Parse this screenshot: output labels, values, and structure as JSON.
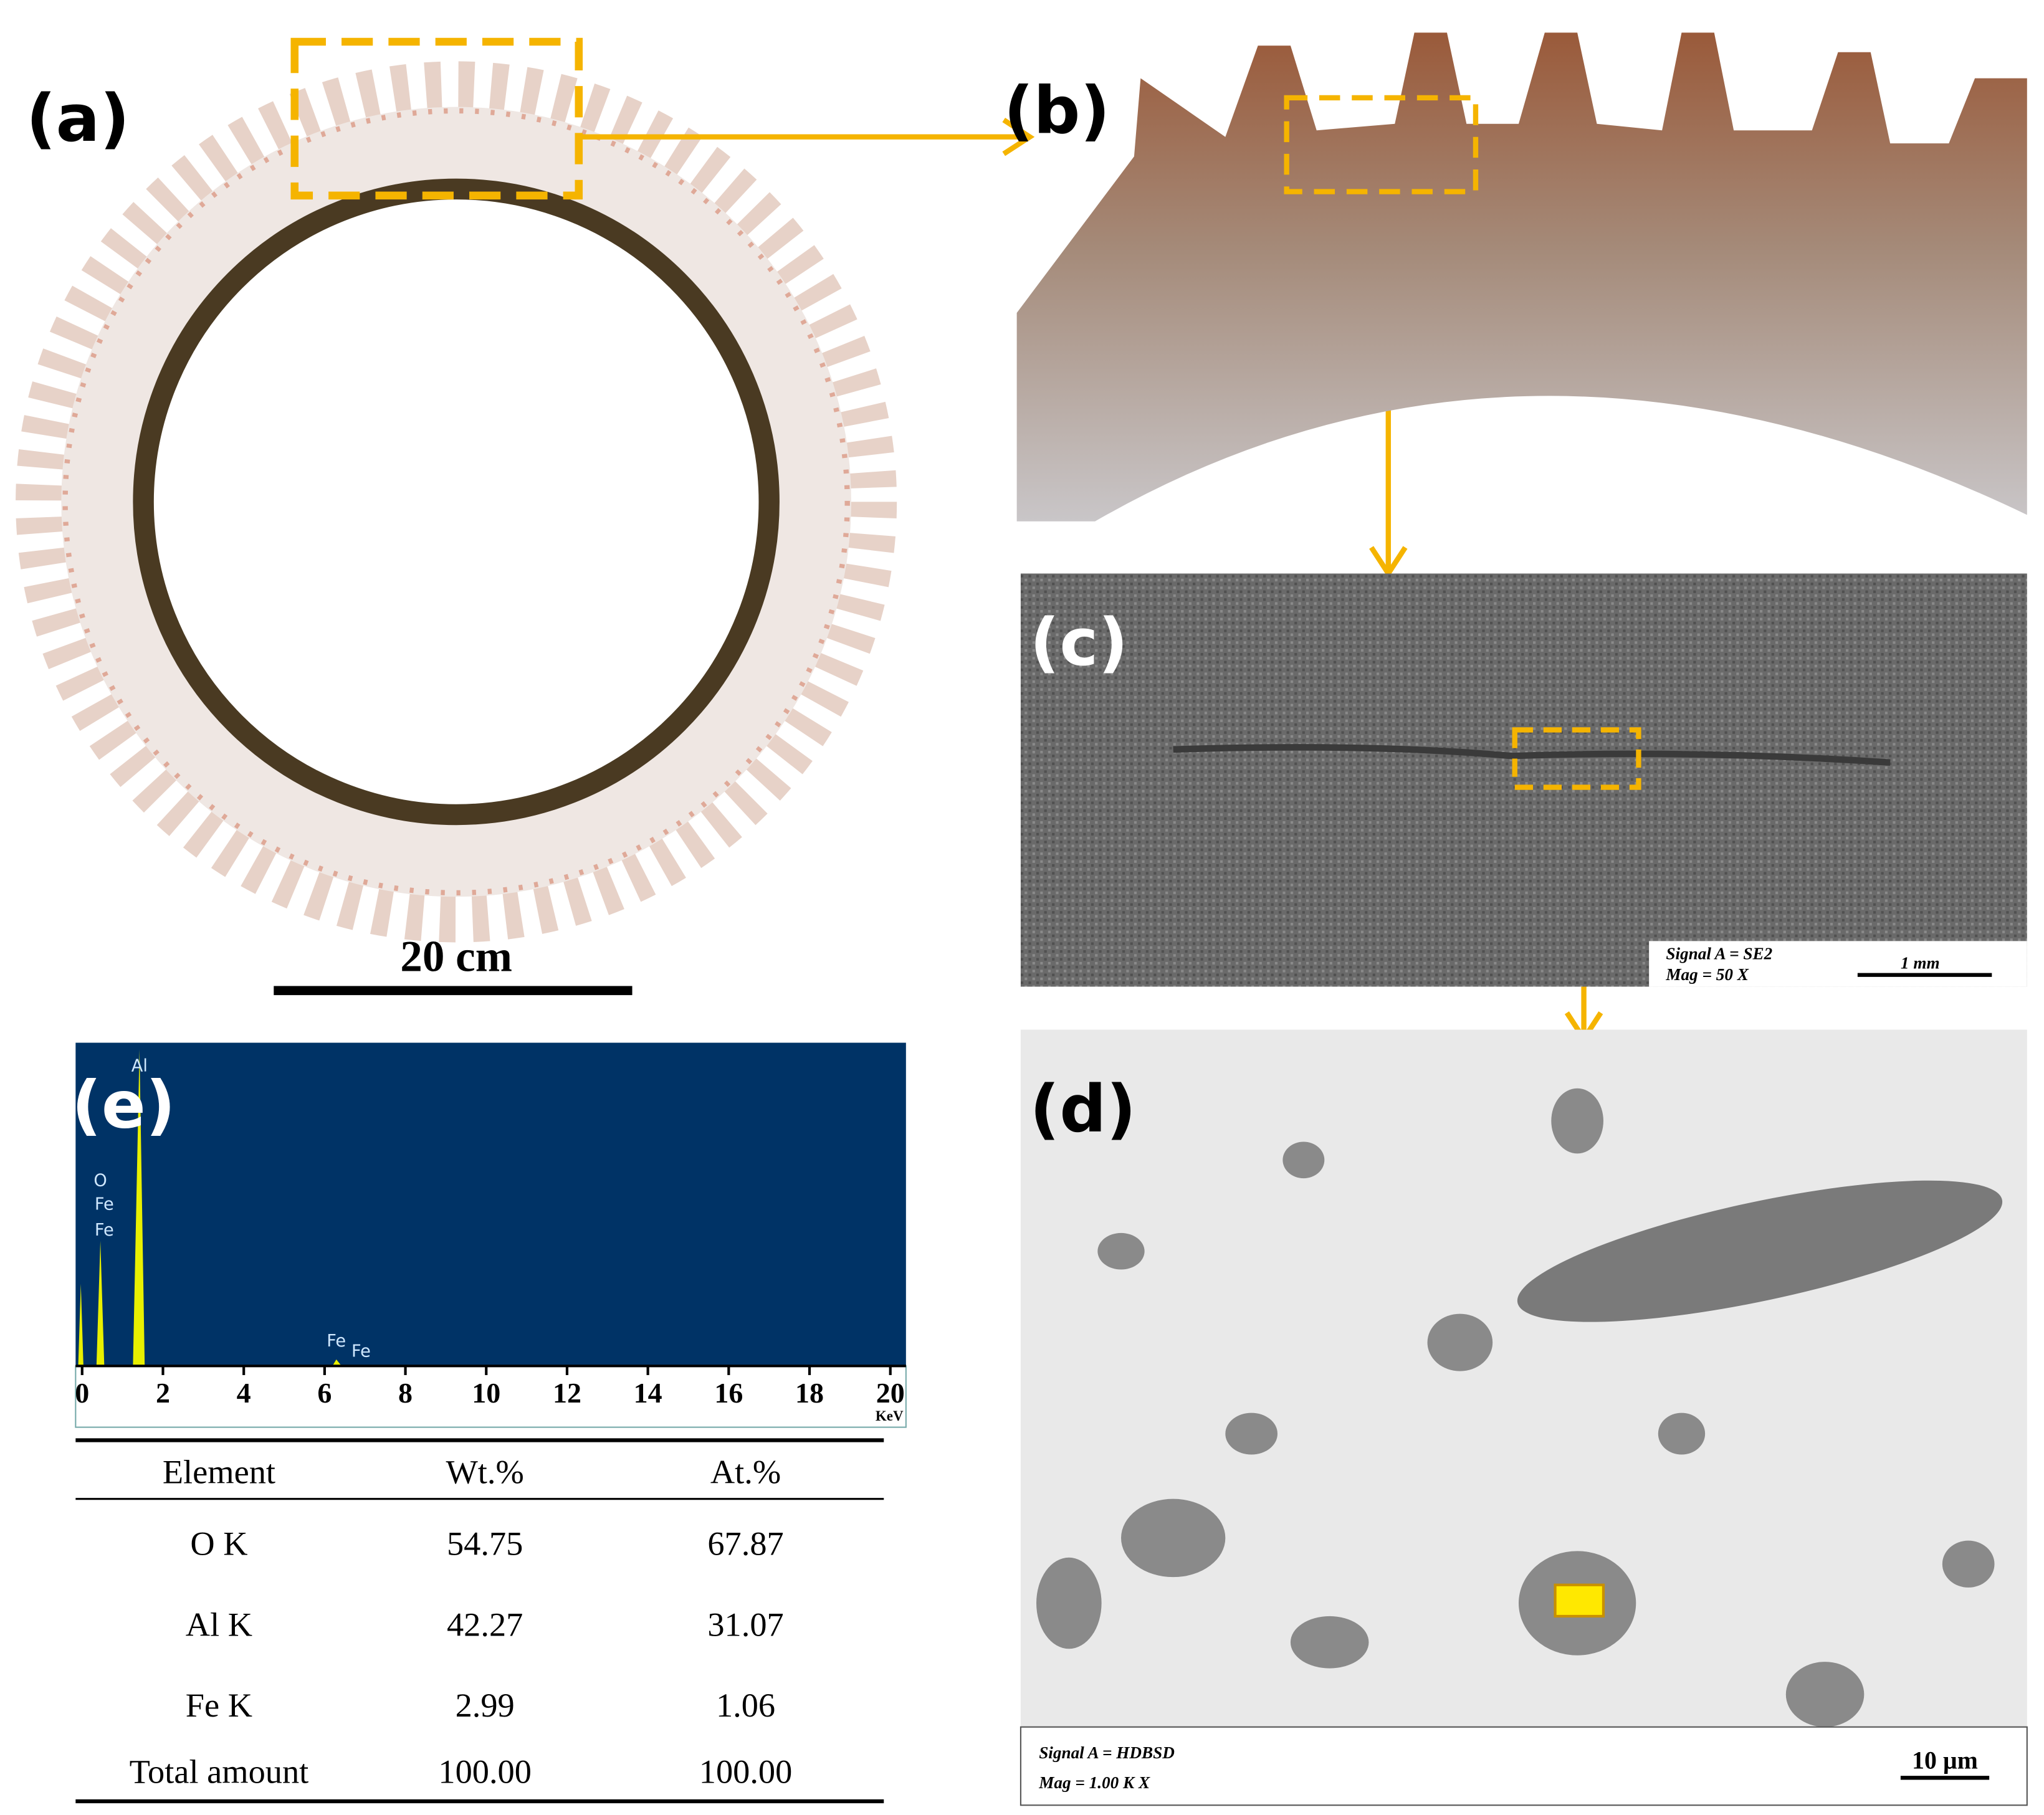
{
  "panels": {
    "a": "(a)",
    "b": "(b)",
    "c": "(c)",
    "d": "(d)",
    "e": "(e)"
  },
  "scale_bar_a": "20 cm",
  "sem_c": {
    "signal": "Signal A = SE2",
    "mag": "Mag  = 50 X",
    "scale": "1 mm"
  },
  "sem_d": {
    "signal": "Signal A = HDBSD",
    "mag": "Mag  = 1.00 K X",
    "scale": "10 µm"
  },
  "spectrum": {
    "xlim": [
      0,
      20
    ],
    "xticks": [
      0,
      2,
      4,
      6,
      8,
      10,
      12,
      14,
      16,
      18,
      20
    ],
    "xlabel": "KeV",
    "peak_labels": [
      "Al",
      "O",
      "Fe",
      "Fe",
      "Fe",
      "Fe"
    ]
  },
  "table": {
    "header": [
      "Element",
      "Wt.%",
      "At.%"
    ],
    "rows": [
      [
        "O K",
        "54.75",
        "67.87"
      ],
      [
        "Al K",
        "42.27",
        "31.07"
      ],
      [
        "Fe K",
        "2.99",
        "1.06"
      ],
      [
        "Total amount",
        "100.00",
        "100.00"
      ]
    ]
  }
}
